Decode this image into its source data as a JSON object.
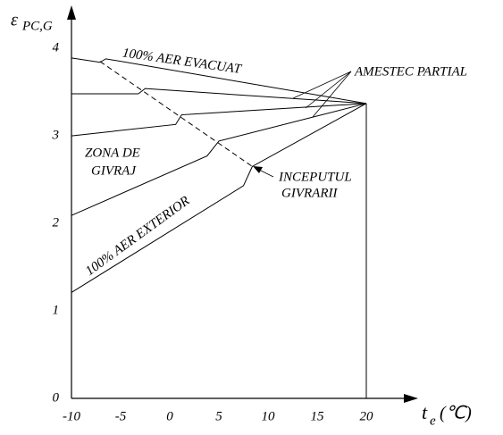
{
  "chart_data": {
    "type": "line",
    "y_label": {
      "symbol": "ε",
      "subscript": "PC,G"
    },
    "x_label": {
      "symbol": "t",
      "subscript": "e",
      "unit": "(℃)"
    },
    "xlim": [
      -10,
      25
    ],
    "ylim": [
      0,
      4.45
    ],
    "xticks": [
      -10,
      -5,
      0,
      5,
      10,
      15,
      20
    ],
    "yticks": [
      0,
      1,
      2,
      3,
      4
    ],
    "grid": false,
    "color": "#000000",
    "series": [
      {
        "x": [
          -10,
          -7.1,
          -6.5,
          20
        ],
        "values": [
          3.89,
          3.84,
          3.88,
          3.37
        ]
      },
      {
        "x": [
          -10,
          -3.2,
          -2.5,
          20
        ],
        "values": [
          3.48,
          3.48,
          3.54,
          3.37
        ]
      },
      {
        "x": [
          -10,
          0.6,
          1.2,
          20
        ],
        "values": [
          3.0,
          3.13,
          3.24,
          3.37
        ]
      },
      {
        "x": [
          -10,
          3.8,
          5,
          20
        ],
        "values": [
          2.09,
          2.77,
          2.94,
          3.37
        ]
      },
      {
        "x": [
          -10,
          7.5,
          8.4,
          20
        ],
        "values": [
          1.21,
          2.43,
          2.65,
          3.37
        ]
      },
      {
        "x": [
          -7.1,
          8.4
        ],
        "values": [
          3.85,
          2.65
        ],
        "dashed": true
      },
      {
        "x": [
          20,
          20
        ],
        "values": [
          3.37,
          0
        ]
      }
    ],
    "annotations": {
      "evacuat": "100% AER EVACUAT",
      "amestec": "AMESTEC PARTIAL",
      "zona1": "ZONA DE",
      "zona2": "GIVRAJ",
      "inceput1": "INCEPUTUL",
      "inceput2": "GIVRARII",
      "exterior": "100% AER EXTERIOR"
    }
  }
}
